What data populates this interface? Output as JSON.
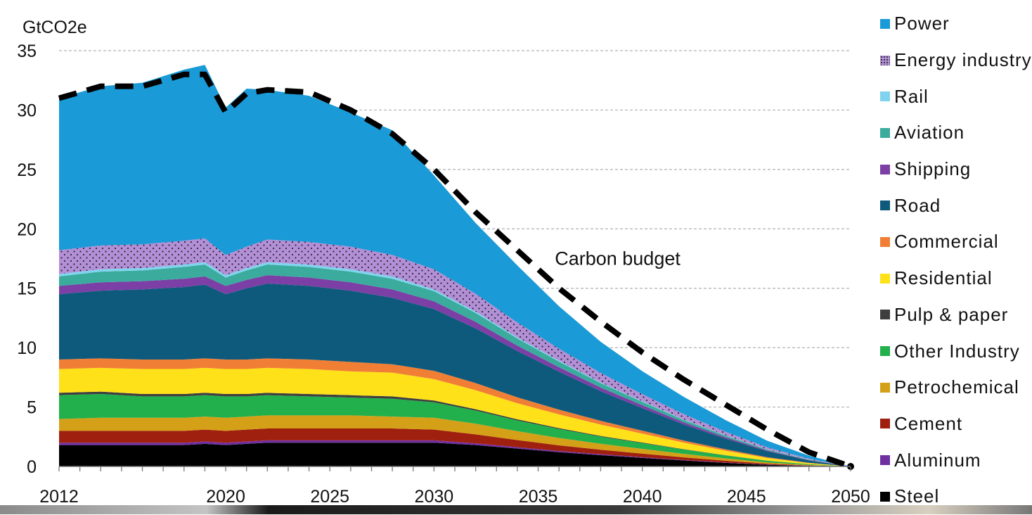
{
  "chart_data": {
    "type": "area",
    "title": "",
    "ylabel": "GtCO2e",
    "xlabel": "",
    "ylim": [
      0,
      35
    ],
    "xlim": [
      2012,
      2050
    ],
    "yticks": [
      0,
      5,
      10,
      15,
      20,
      25,
      30,
      35
    ],
    "xtick_labels": [
      {
        "x": 2012,
        "label": "2012"
      },
      {
        "x": 2020,
        "label": "2020"
      },
      {
        "x": 2025,
        "label": "2025"
      },
      {
        "x": 2030,
        "label": "2030"
      },
      {
        "x": 2035,
        "label": "2035"
      },
      {
        "x": 2040,
        "label": "2040"
      },
      {
        "x": 2045,
        "label": "2045"
      },
      {
        "x": 2050,
        "label": "2050"
      }
    ],
    "grid": "horizontal dashed",
    "stacked": true,
    "annotation": {
      "text": "Carbon budget",
      "x": 2035.8,
      "y": 17.5
    },
    "x": [
      2012,
      2014,
      2016,
      2018,
      2019,
      2020,
      2021,
      2022,
      2024,
      2026,
      2028,
      2030,
      2032,
      2034,
      2036,
      2038,
      2040,
      2042,
      2044,
      2046,
      2048,
      2050
    ],
    "series": [
      {
        "name": "Steel",
        "color": "#000000",
        "values": [
          1.8,
          1.8,
          1.8,
          1.8,
          1.9,
          1.8,
          1.9,
          2.0,
          2.0,
          2.0,
          2.0,
          2.0,
          1.8,
          1.5,
          1.2,
          0.95,
          0.72,
          0.5,
          0.3,
          0.14,
          0.05,
          0.0
        ]
      },
      {
        "name": "Aluminum",
        "color": "#7030a0",
        "values": [
          0.2,
          0.2,
          0.2,
          0.2,
          0.2,
          0.2,
          0.2,
          0.2,
          0.2,
          0.2,
          0.2,
          0.2,
          0.15,
          0.12,
          0.1,
          0.08,
          0.06,
          0.04,
          0.03,
          0.02,
          0.01,
          0.0
        ]
      },
      {
        "name": "Cement",
        "color": "#a02010",
        "values": [
          1.0,
          1.0,
          1.0,
          1.0,
          1.0,
          1.0,
          1.0,
          1.0,
          1.0,
          1.0,
          1.0,
          0.9,
          0.75,
          0.6,
          0.48,
          0.38,
          0.3,
          0.22,
          0.15,
          0.08,
          0.03,
          0.0
        ]
      },
      {
        "name": "Petrochemical",
        "color": "#d4a017",
        "values": [
          1.0,
          1.1,
          1.1,
          1.1,
          1.1,
          1.1,
          1.1,
          1.1,
          1.1,
          1.1,
          1.0,
          1.0,
          0.9,
          0.75,
          0.62,
          0.5,
          0.4,
          0.3,
          0.2,
          0.1,
          0.04,
          0.0
        ]
      },
      {
        "name": "Other Industry",
        "color": "#22b04c",
        "values": [
          2.0,
          2.0,
          1.8,
          1.8,
          1.8,
          1.8,
          1.7,
          1.7,
          1.6,
          1.5,
          1.5,
          1.3,
          1.1,
          0.9,
          0.75,
          0.6,
          0.48,
          0.36,
          0.24,
          0.14,
          0.06,
          0.0
        ]
      },
      {
        "name": "Pulp & paper",
        "color": "#3f3f3f",
        "values": [
          0.2,
          0.2,
          0.2,
          0.2,
          0.2,
          0.2,
          0.2,
          0.2,
          0.2,
          0.2,
          0.2,
          0.15,
          0.12,
          0.1,
          0.08,
          0.06,
          0.05,
          0.03,
          0.02,
          0.01,
          0.0,
          0.0
        ]
      },
      {
        "name": "Residential",
        "color": "#ffe11a",
        "values": [
          2.0,
          2.0,
          2.1,
          2.1,
          2.1,
          2.1,
          2.1,
          2.1,
          2.1,
          2.0,
          2.0,
          1.8,
          1.6,
          1.35,
          1.15,
          0.95,
          0.75,
          0.55,
          0.38,
          0.22,
          0.09,
          0.0
        ]
      },
      {
        "name": "Commercial",
        "color": "#f07f35",
        "values": [
          0.8,
          0.8,
          0.8,
          0.8,
          0.8,
          0.8,
          0.8,
          0.8,
          0.8,
          0.8,
          0.7,
          0.7,
          0.6,
          0.5,
          0.4,
          0.32,
          0.25,
          0.18,
          0.12,
          0.07,
          0.03,
          0.0
        ]
      },
      {
        "name": "Road",
        "color": "#0e5a7d",
        "values": [
          5.5,
          5.7,
          5.9,
          6.1,
          6.2,
          5.5,
          6.0,
          6.3,
          6.2,
          6.0,
          5.6,
          5.2,
          4.6,
          3.9,
          3.2,
          2.5,
          1.9,
          1.35,
          0.9,
          0.5,
          0.2,
          0.0
        ]
      },
      {
        "name": "Shipping",
        "color": "#7b3fa5",
        "values": [
          0.7,
          0.7,
          0.7,
          0.7,
          0.7,
          0.7,
          0.7,
          0.7,
          0.7,
          0.7,
          0.7,
          0.65,
          0.55,
          0.45,
          0.37,
          0.3,
          0.24,
          0.18,
          0.12,
          0.07,
          0.03,
          0.0
        ]
      },
      {
        "name": "Aviation",
        "color": "#3aab9c",
        "values": [
          0.8,
          0.9,
          0.9,
          1.0,
          1.0,
          0.7,
          0.8,
          0.9,
          0.9,
          0.9,
          0.9,
          0.85,
          0.75,
          0.6,
          0.48,
          0.38,
          0.29,
          0.2,
          0.13,
          0.07,
          0.03,
          0.0
        ]
      },
      {
        "name": "Rail",
        "color": "#7fd3ee",
        "values": [
          0.2,
          0.2,
          0.2,
          0.2,
          0.2,
          0.2,
          0.2,
          0.2,
          0.2,
          0.2,
          0.2,
          0.15,
          0.12,
          0.1,
          0.08,
          0.06,
          0.05,
          0.04,
          0.03,
          0.02,
          0.01,
          0.0
        ]
      },
      {
        "name": "Energy industry",
        "color": "#b28fd6",
        "values": [
          2.0,
          2.0,
          2.0,
          2.0,
          2.0,
          1.7,
          1.8,
          1.9,
          1.9,
          1.9,
          1.8,
          1.7,
          1.5,
          1.25,
          1.0,
          0.8,
          0.6,
          0.45,
          0.3,
          0.17,
          0.07,
          0.0
        ]
      },
      {
        "name": "Power",
        "color": "#1a9ad6",
        "values": [
          12.8,
          13.4,
          13.6,
          14.4,
          14.6,
          12.4,
          13.3,
          12.6,
          12.3,
          11.3,
          10.5,
          7.9,
          5.95,
          4.8,
          3.58,
          2.62,
          1.93,
          1.45,
          0.98,
          0.55,
          0.26,
          0.0
        ]
      }
    ],
    "carbon_budget": {
      "name": "Carbon budget",
      "style": "black dashed",
      "values": [
        31.0,
        32.0,
        32.0,
        33.0,
        33.0,
        29.8,
        31.4,
        31.7,
        31.5,
        30.0,
        28.0,
        25.0,
        21.4,
        18.2,
        15.0,
        12.2,
        9.6,
        7.3,
        5.2,
        3.1,
        1.2,
        0.0
      ]
    }
  },
  "legend": {
    "items": [
      {
        "label": "Power",
        "color": "#1a9ad6"
      },
      {
        "label": "Energy industry",
        "color": "#b28fd6"
      },
      {
        "label": "Rail",
        "color": "#7fd3ee"
      },
      {
        "label": "Aviation",
        "color": "#3aab9c"
      },
      {
        "label": "Shipping",
        "color": "#7b3fa5"
      },
      {
        "label": "Road",
        "color": "#0e5a7d"
      },
      {
        "label": "Commercial",
        "color": "#f07f35"
      },
      {
        "label": "Residential",
        "color": "#ffe11a"
      },
      {
        "label": "Pulp & paper",
        "color": "#3f3f3f"
      },
      {
        "label": "Other Industry",
        "color": "#22b04c"
      },
      {
        "label": "Petrochemical",
        "color": "#d4a017"
      },
      {
        "label": "Cement",
        "color": "#a02010"
      },
      {
        "label": "Aluminum",
        "color": "#7030a0"
      },
      {
        "label": "Steel",
        "color": "#000000"
      }
    ]
  }
}
